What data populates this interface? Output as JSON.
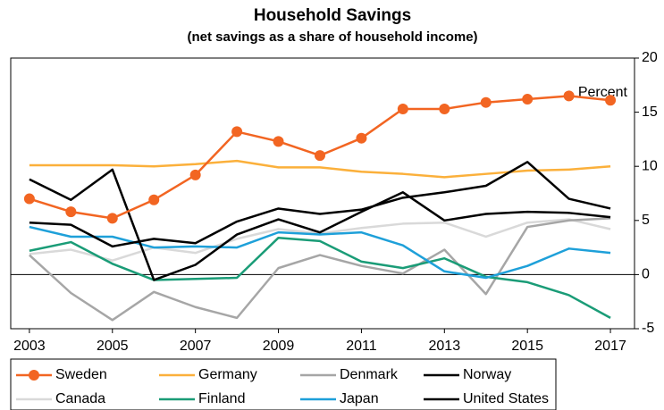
{
  "chart_data": {
    "type": "line",
    "title": "Household Savings",
    "subtitle": "(net savings as a share of household income)",
    "y_label": "Percent",
    "x": [
      2003,
      2004,
      2005,
      2006,
      2007,
      2008,
      2009,
      2010,
      2011,
      2012,
      2013,
      2014,
      2015,
      2016,
      2017
    ],
    "xlim": [
      2002.55,
      2017.58
    ],
    "xticks": [
      2003,
      2005,
      2007,
      2009,
      2011,
      2013,
      2015,
      2017
    ],
    "ylim": [
      -5,
      20
    ],
    "yticks": [
      -5,
      0,
      5,
      10,
      15,
      20
    ],
    "y_axis_side": "right",
    "grid": false,
    "legend": "bottom",
    "series": [
      {
        "name": "Sweden",
        "color": "#f26522",
        "marker": "circle",
        "values": [
          7.0,
          5.8,
          5.2,
          6.9,
          9.2,
          13.2,
          12.3,
          11.0,
          12.6,
          15.3,
          15.3,
          15.9,
          16.2,
          16.5,
          16.1
        ]
      },
      {
        "name": "Germany",
        "color": "#fbb03b",
        "values": [
          10.1,
          10.1,
          10.1,
          10.0,
          10.2,
          10.5,
          9.9,
          9.9,
          9.5,
          9.3,
          9.0,
          9.3,
          9.6,
          9.7,
          10.0
        ]
      },
      {
        "name": "Denmark",
        "color": "#a6a6a6",
        "values": [
          1.8,
          -1.7,
          -4.2,
          -1.6,
          -3.0,
          -4.0,
          0.6,
          1.8,
          0.8,
          0.1,
          2.3,
          -1.8,
          4.4,
          5.0,
          5.2
        ]
      },
      {
        "name": "Norway",
        "color": "#000000",
        "values": [
          8.8,
          6.9,
          9.7,
          -0.5,
          0.9,
          3.7,
          5.1,
          3.9,
          5.8,
          7.6,
          5.0,
          5.6,
          5.8,
          5.7,
          5.3
        ]
      },
      {
        "name": "Canada",
        "color": "#d9d9d9",
        "values": [
          1.9,
          2.3,
          1.3,
          2.5,
          2.0,
          3.3,
          4.2,
          3.8,
          4.3,
          4.7,
          4.8,
          3.5,
          4.8,
          5.1,
          4.2
        ]
      },
      {
        "name": "Finland",
        "color": "#1a9c77",
        "values": [
          2.2,
          3.0,
          1.0,
          -0.5,
          -0.4,
          -0.3,
          3.4,
          3.1,
          1.2,
          0.6,
          1.5,
          -0.2,
          -0.7,
          -1.9,
          -4.0
        ]
      },
      {
        "name": "Japan",
        "color": "#1ea0d9",
        "values": [
          4.4,
          3.5,
          3.5,
          2.5,
          2.6,
          2.5,
          3.9,
          3.7,
          3.9,
          2.7,
          0.3,
          -0.3,
          0.8,
          2.4,
          2.0
        ]
      },
      {
        "name": "United States",
        "color": "#000000",
        "values": [
          4.8,
          4.6,
          2.6,
          3.3,
          2.9,
          4.9,
          6.1,
          5.6,
          6.0,
          7.1,
          7.6,
          8.2,
          10.4,
          7.0,
          6.1
        ]
      }
    ]
  }
}
